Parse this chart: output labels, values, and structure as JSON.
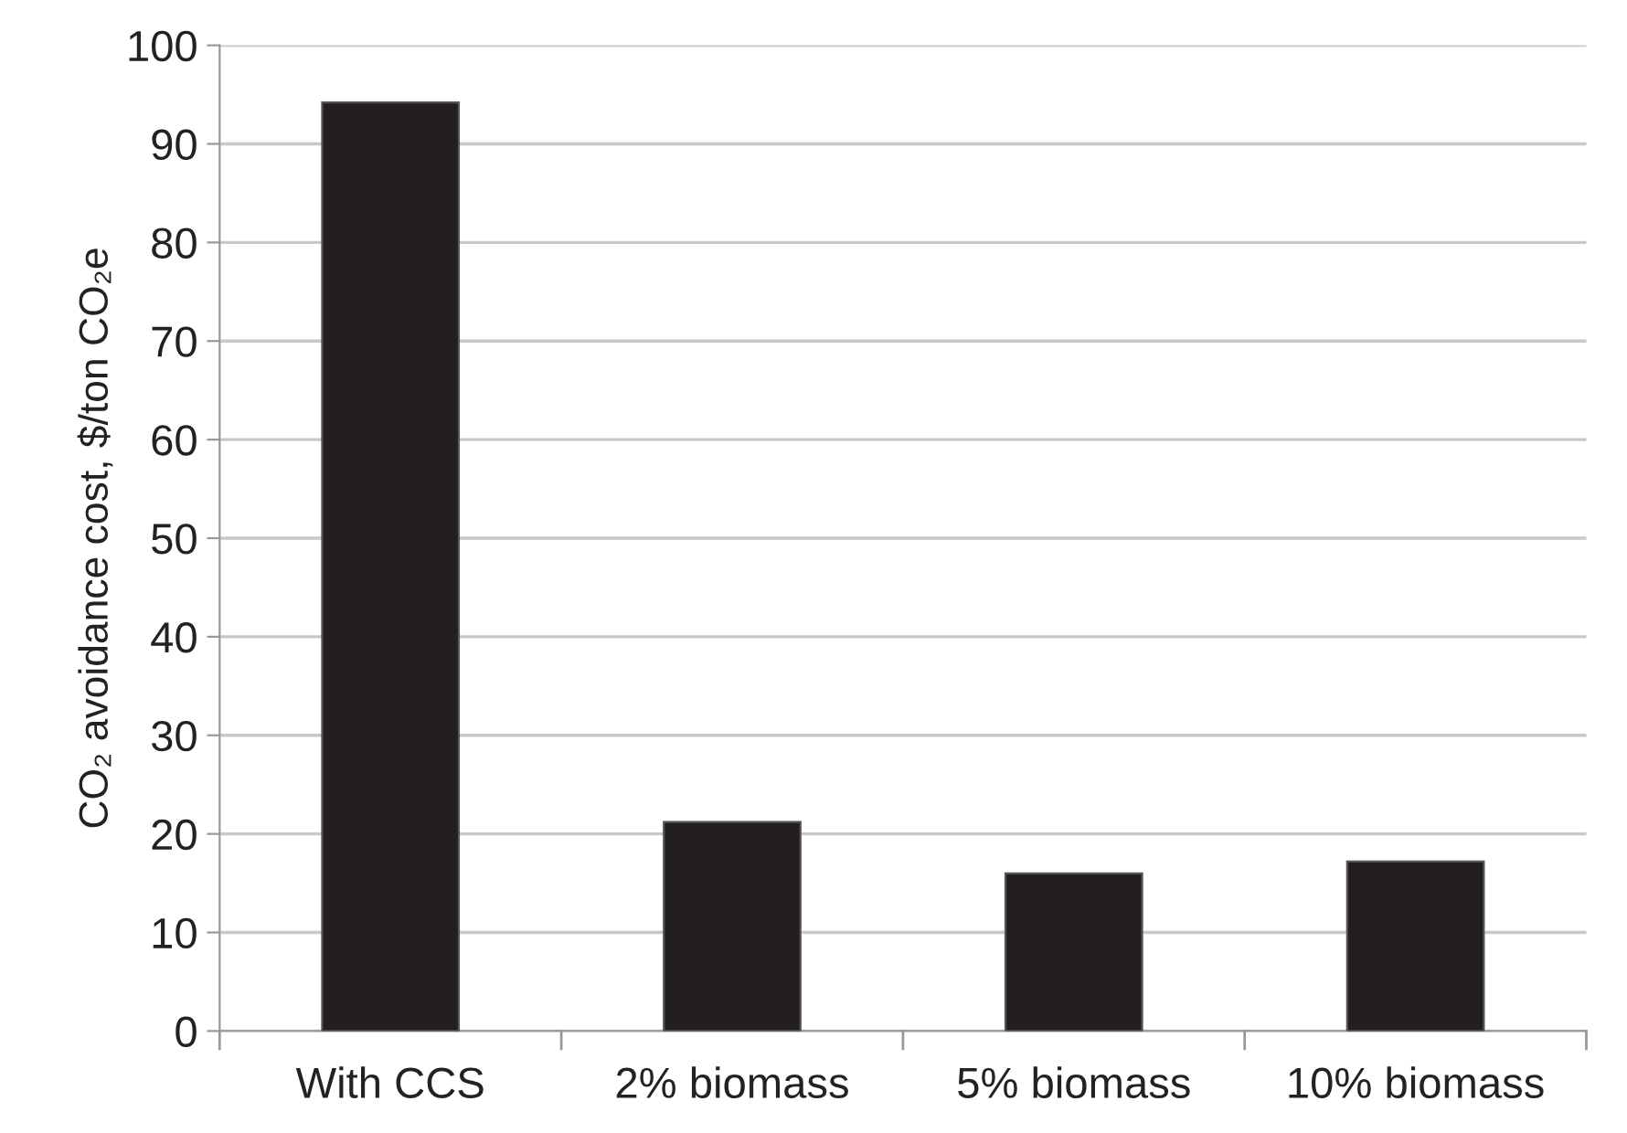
{
  "chart_data": {
    "type": "bar",
    "ylabel": "CO₂ avoidance cost, $/ton CO₂e",
    "categories": [
      "With CCS",
      "2% biomass",
      "5% biomass",
      "10% biomass"
    ],
    "values": [
      94.2,
      21.2,
      16.0,
      17.2
    ],
    "color": "#231f20",
    "ylim": [
      0,
      100
    ],
    "yticks": [
      0,
      10,
      20,
      30,
      40,
      50,
      60,
      70,
      80,
      90,
      100
    ],
    "grid": "y",
    "legend": false
  }
}
